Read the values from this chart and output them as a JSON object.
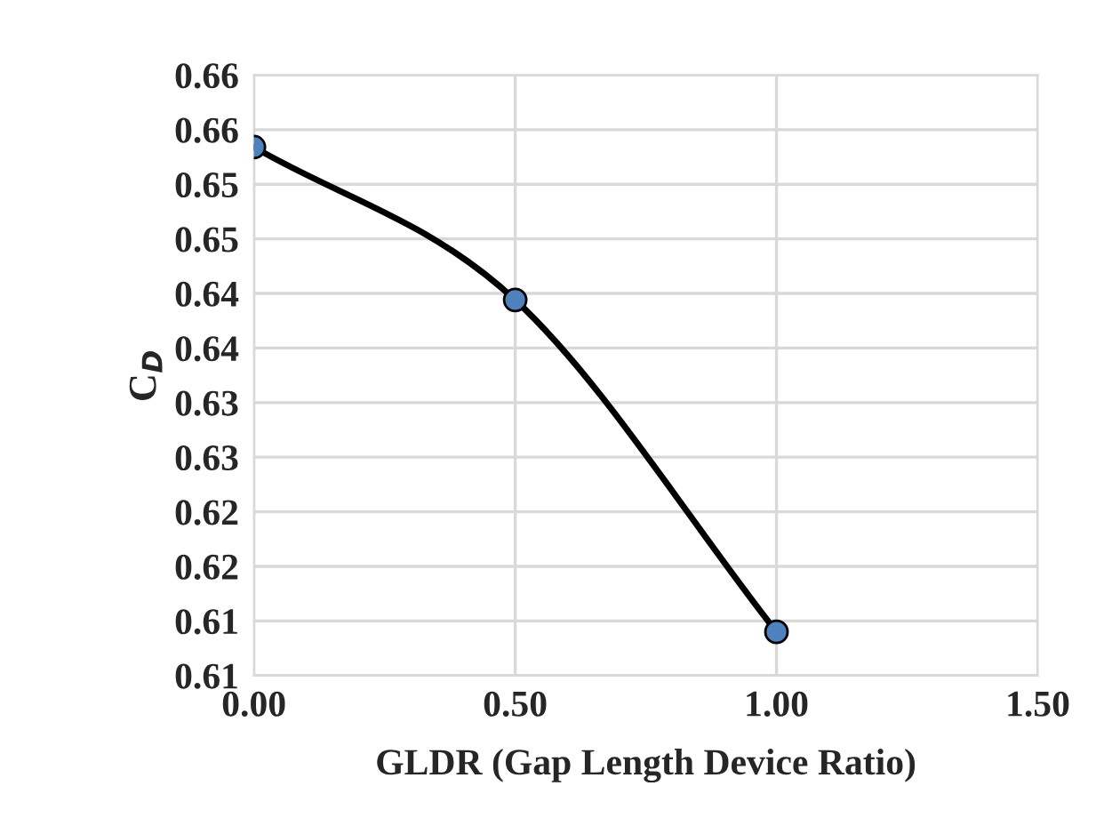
{
  "chart_data": {
    "type": "line",
    "xlabel": "GLDR (Gap Length Device Ratio)",
    "ylabel": "C$_{D}$",
    "x": [
      0.0,
      0.5,
      1.0
    ],
    "series": [
      {
        "color": "#000000",
        "colors": [
          "#4f81bd",
          "#4f81bd",
          "#4f81bd"
        ],
        "values": [
          0.6534,
          0.6394,
          0.609
        ]
      }
    ],
    "marker": "circle",
    "line_style": "solid",
    "grid": true,
    "xlim": [
      0.0,
      1.5
    ],
    "xticks": [
      {
        "value": 0.0,
        "label": "0.00"
      },
      {
        "value": 0.5,
        "label": "0.50"
      },
      {
        "value": 1.0,
        "label": "1.00"
      },
      {
        "value": 1.5,
        "label": "1.50"
      }
    ],
    "ylim": [
      0.605,
      0.66
    ],
    "yticks": [
      {
        "value": 0.605,
        "label": "0.61"
      },
      {
        "value": 0.61,
        "label": "0.61"
      },
      {
        "value": 0.615,
        "label": "0.62"
      },
      {
        "value": 0.62,
        "label": "0.62"
      },
      {
        "value": 0.625,
        "label": "0.63"
      },
      {
        "value": 0.63,
        "label": "0.63"
      },
      {
        "value": 0.635,
        "label": "0.64"
      },
      {
        "value": 0.64,
        "label": "0.64"
      },
      {
        "value": 0.645,
        "label": "0.65"
      },
      {
        "value": 0.65,
        "label": "0.65"
      },
      {
        "value": 0.655,
        "label": "0.66"
      },
      {
        "value": 0.66,
        "label": "0.66"
      }
    ]
  }
}
